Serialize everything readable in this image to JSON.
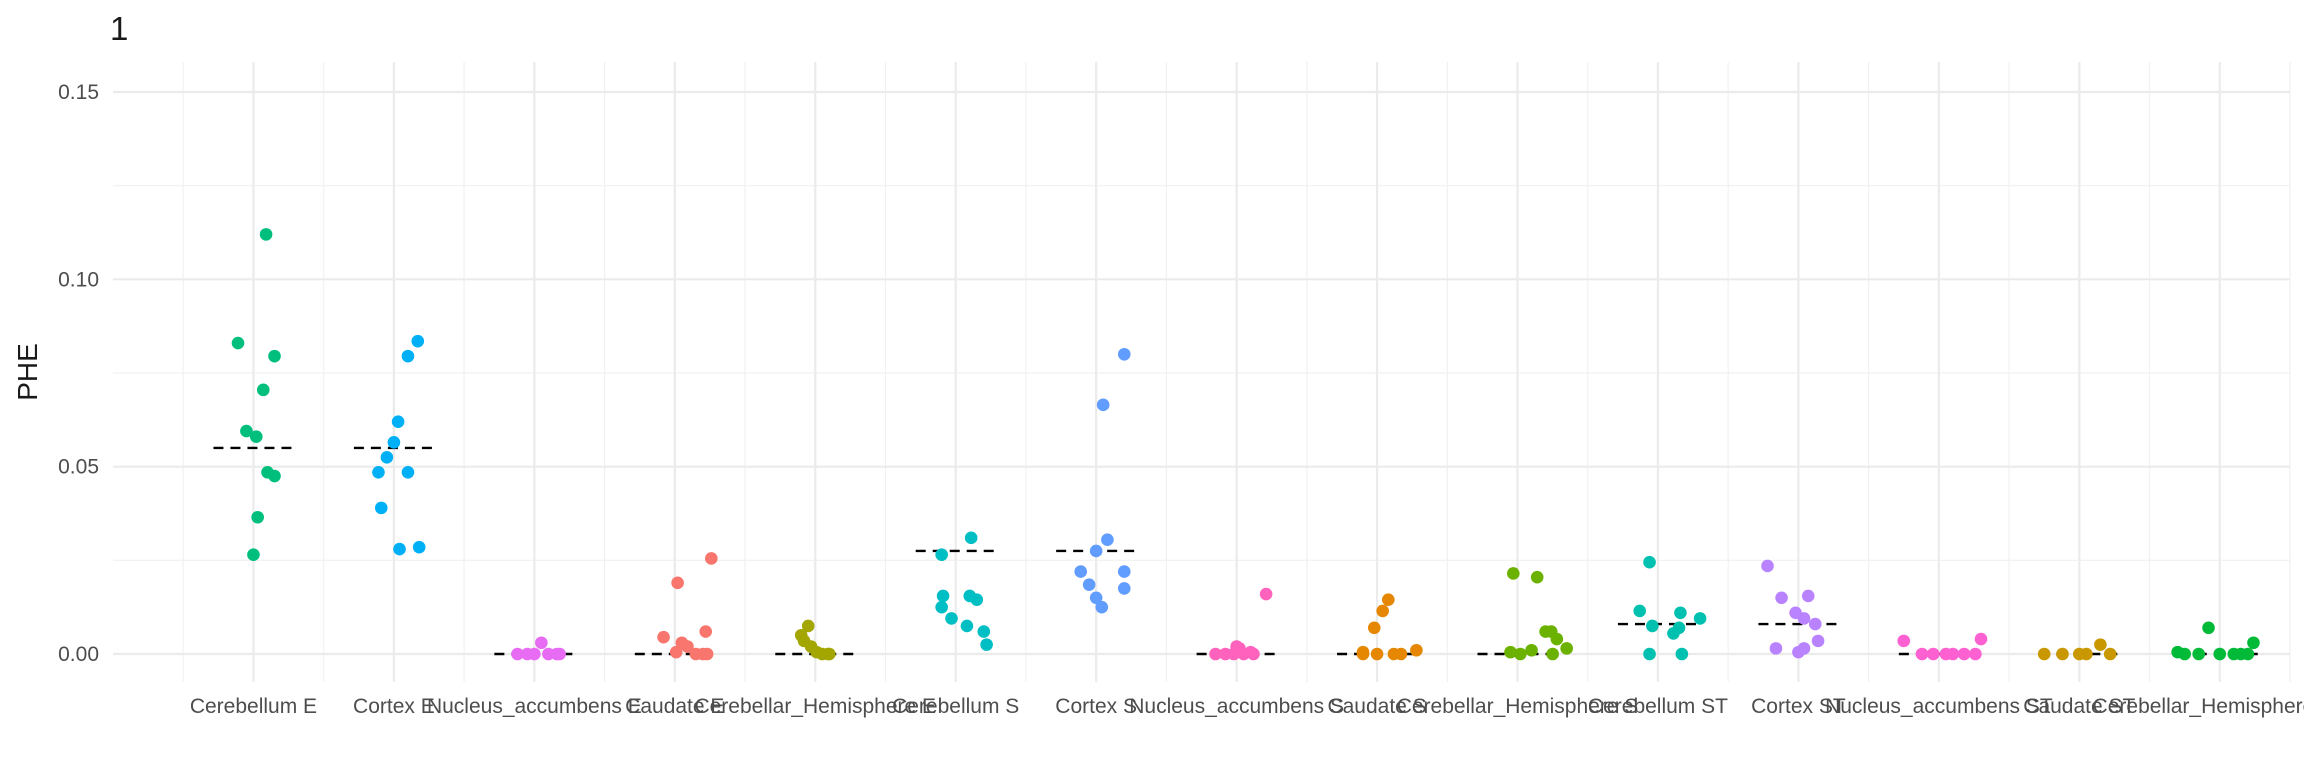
{
  "chart_data": {
    "type": "scatter",
    "title": "1",
    "xlabel": "",
    "ylabel": "PHE",
    "ylim": [
      -0.007,
      0.158
    ],
    "yticks": [
      0.0,
      0.05,
      0.1,
      0.15
    ],
    "ytick_labels": [
      "0.00",
      "0.05",
      "0.10",
      "0.15"
    ],
    "grid": true,
    "legend": "none",
    "categories": [
      "Cerebellum E",
      "Cortex E",
      "Nucleus_accumbens E",
      "Caudate E",
      "Cerebellar_Hemisphere E",
      "Cerebellum S",
      "Cortex S",
      "Nucleus_accumbens S",
      "Caudate S",
      "Cerebellar_Hemisphere S",
      "Cerebellum ST",
      "Cortex ST",
      "Nucleus_accumbens ST",
      "Caudate ST",
      "Cerebellar_Hemisphere ST"
    ],
    "colors": [
      "#00BF7D",
      "#00B0F6",
      "#E76BF3",
      "#F8766D",
      "#A3A500",
      "#00BFC4",
      "#619CFF",
      "#FF62BC",
      "#E58700",
      "#6BB100",
      "#00C0AF",
      "#B983FF",
      "#FD61D1",
      "#C99800",
      "#00BA38"
    ],
    "medians": [
      0.055,
      0.055,
      0.0,
      0.0,
      0.0,
      0.0275,
      0.0275,
      0.0,
      0.0,
      0.0,
      0.008,
      0.008,
      0.0,
      0.0,
      0.0
    ],
    "series": [
      {
        "values": [
          0.112,
          0.083,
          0.0795,
          0.0705,
          0.0595,
          0.058,
          0.0485,
          0.0475,
          0.0365,
          0.0265
        ],
        "jitter": [
          0.09,
          -0.11,
          0.15,
          0.07,
          -0.05,
          0.02,
          0.1,
          0.15,
          0.03,
          0.0
        ]
      },
      {
        "values": [
          0.0835,
          0.0795,
          0.062,
          0.0565,
          0.0525,
          0.0485,
          0.0485,
          0.039,
          0.0285,
          0.028
        ],
        "jitter": [
          0.17,
          0.1,
          0.03,
          0.0,
          -0.05,
          -0.11,
          0.1,
          -0.09,
          0.18,
          0.04
        ]
      },
      {
        "values": [
          0.003,
          0.0,
          0.0,
          0.0,
          0.0,
          0.0,
          0.0
        ],
        "jitter": [
          0.05,
          -0.12,
          -0.05,
          0.0,
          0.1,
          0.18,
          0.16
        ]
      },
      {
        "values": [
          0.0255,
          0.019,
          0.006,
          0.0045,
          0.003,
          0.002,
          0.0005,
          0.0,
          0.0,
          0.0
        ],
        "jitter": [
          0.26,
          0.02,
          0.22,
          -0.08,
          0.05,
          0.09,
          0.01,
          0.15,
          0.2,
          0.23
        ]
      },
      {
        "values": [
          0.0075,
          0.005,
          0.0035,
          0.002,
          0.0005,
          0.0,
          0.0,
          0.0
        ],
        "jitter": [
          -0.05,
          -0.1,
          -0.08,
          -0.03,
          0.01,
          0.05,
          0.09,
          0.1
        ]
      },
      {
        "values": [
          0.031,
          0.0265,
          0.0155,
          0.0155,
          0.0145,
          0.0125,
          0.0095,
          0.0075,
          0.006,
          0.0025
        ],
        "jitter": [
          0.11,
          -0.1,
          -0.09,
          0.1,
          0.15,
          -0.1,
          -0.03,
          0.08,
          0.2,
          0.22
        ]
      },
      {
        "values": [
          0.08,
          0.0665,
          0.0305,
          0.0275,
          0.022,
          0.022,
          0.0185,
          0.0175,
          0.015,
          0.0125
        ],
        "jitter": [
          0.2,
          0.05,
          0.08,
          0.0,
          0.2,
          -0.11,
          -0.05,
          0.2,
          0.0,
          0.04
        ]
      },
      {
        "values": [
          0.016,
          0.002,
          0.0015,
          0.0005,
          0.0,
          0.0,
          0.0,
          0.0,
          0.0
        ],
        "jitter": [
          0.21,
          0.0,
          0.02,
          0.1,
          -0.15,
          -0.08,
          -0.02,
          0.05,
          0.12
        ]
      },
      {
        "values": [
          0.0145,
          0.0115,
          0.007,
          0.001,
          0.0005,
          0.0,
          0.0,
          0.0,
          0.0
        ],
        "jitter": [
          0.08,
          0.04,
          -0.02,
          0.28,
          -0.1,
          -0.1,
          0.0,
          0.12,
          0.17
        ]
      },
      {
        "values": [
          0.0215,
          0.0205,
          0.006,
          0.006,
          0.004,
          0.0015,
          0.001,
          0.0005,
          0.0,
          0.0
        ],
        "jitter": [
          -0.03,
          0.14,
          0.2,
          0.24,
          0.28,
          0.35,
          0.1,
          -0.05,
          0.02,
          0.25
        ]
      },
      {
        "values": [
          0.0245,
          0.0115,
          0.011,
          0.0095,
          0.0075,
          0.007,
          0.0055,
          0.0,
          0.0
        ],
        "jitter": [
          -0.06,
          -0.13,
          0.16,
          0.3,
          -0.04,
          0.15,
          0.11,
          0.17,
          -0.06
        ]
      },
      {
        "values": [
          0.0235,
          0.0155,
          0.015,
          0.011,
          0.0095,
          0.008,
          0.0035,
          0.0015,
          0.0015,
          0.0005
        ],
        "jitter": [
          -0.22,
          0.07,
          -0.12,
          -0.02,
          0.04,
          0.12,
          0.14,
          -0.16,
          0.04,
          0.0
        ]
      },
      {
        "values": [
          0.004,
          0.0035,
          0.0,
          0.0,
          0.0,
          0.0,
          0.0,
          0.0
        ],
        "jitter": [
          0.3,
          -0.25,
          -0.12,
          -0.04,
          0.05,
          0.1,
          0.18,
          0.26
        ]
      },
      {
        "values": [
          0.0025,
          0.0,
          0.0,
          0.0,
          0.0,
          0.0
        ],
        "jitter": [
          0.15,
          -0.25,
          -0.12,
          0.0,
          0.05,
          0.22
        ]
      },
      {
        "values": [
          0.007,
          0.003,
          0.0005,
          0.0,
          0.0,
          0.0,
          0.0,
          0.0,
          0.0
        ],
        "jitter": [
          -0.08,
          0.24,
          -0.3,
          -0.25,
          -0.15,
          0.0,
          0.1,
          0.15,
          0.2
        ]
      }
    ]
  }
}
